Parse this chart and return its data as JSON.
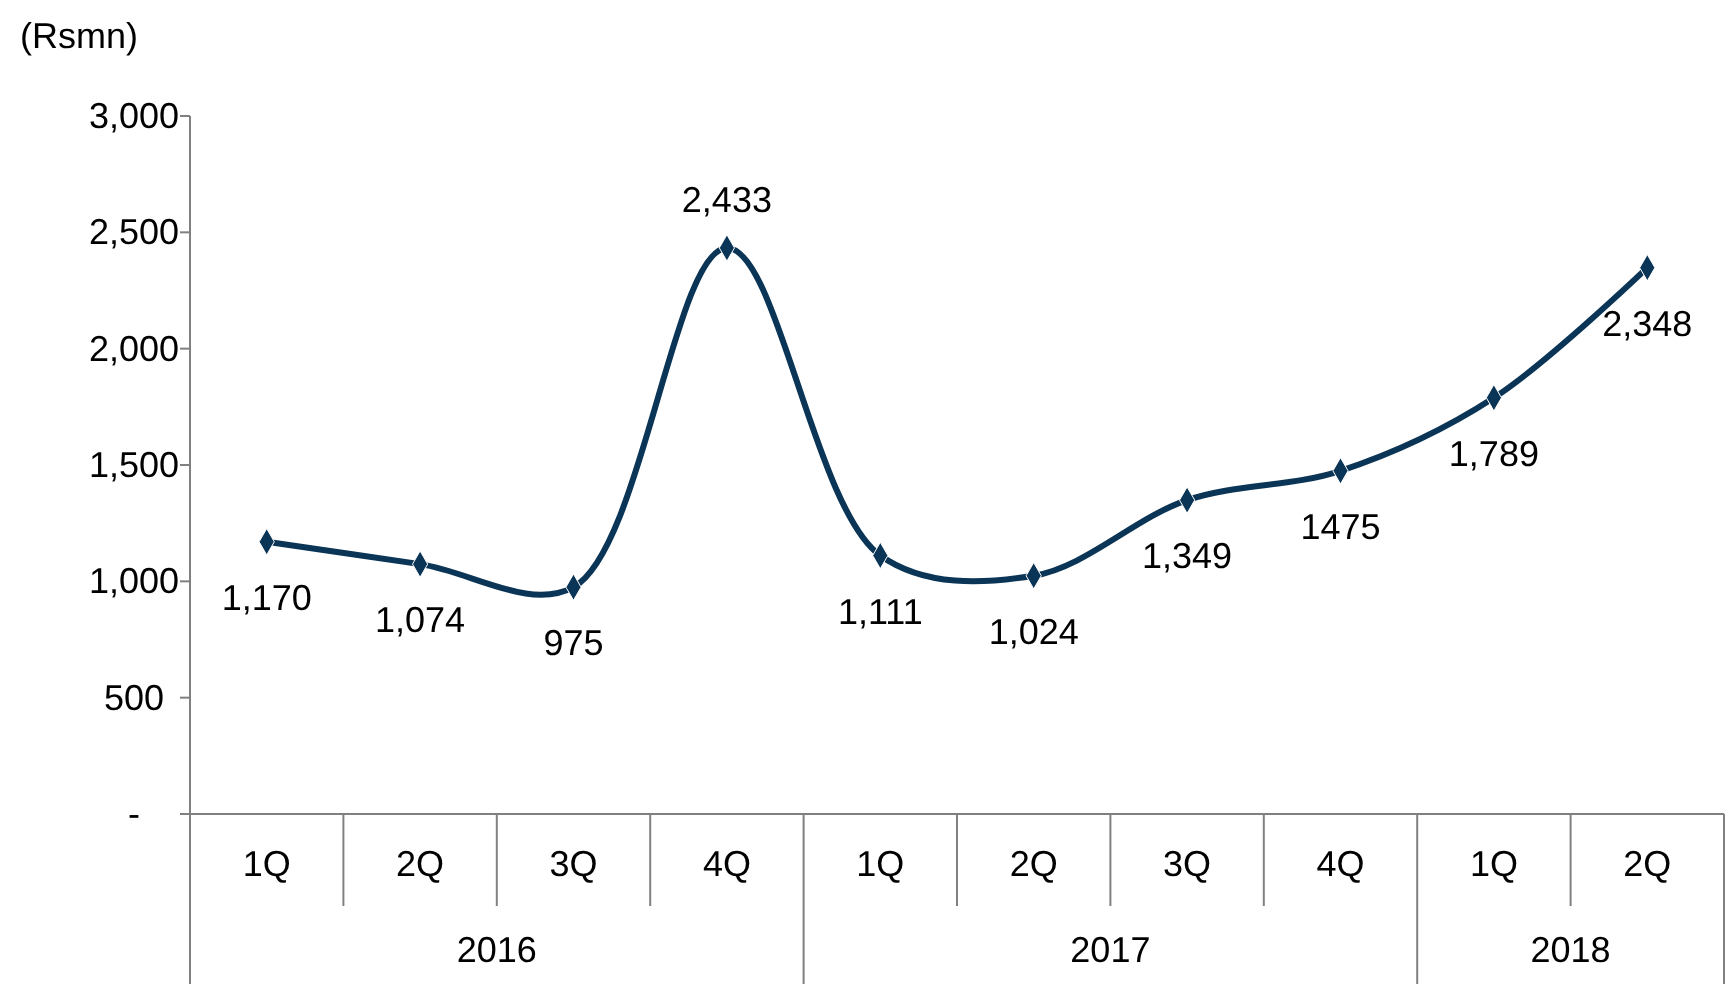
{
  "chart_data": {
    "type": "line",
    "ylabel": "(Rsmn)",
    "categories": [
      "1Q",
      "2Q",
      "3Q",
      "4Q",
      "1Q",
      "2Q",
      "3Q",
      "4Q",
      "1Q",
      "2Q"
    ],
    "series": [
      {
        "color": "#0b3556",
        "values": [
          1170,
          1074,
          975,
          2433,
          1111,
          1024,
          1349,
          1475,
          1789,
          2348
        ]
      }
    ],
    "value_labels": [
      "1,170",
      "1,074",
      "975",
      "2,433",
      "1,111",
      "1,024",
      "1,349",
      "1475",
      "1,789",
      "2,348"
    ],
    "ylim": [
      0,
      3000
    ],
    "yticks": [
      {
        "value": 0,
        "label": "-"
      },
      {
        "value": 500,
        "label": "500"
      },
      {
        "value": 1000,
        "label": "1,000"
      },
      {
        "value": 1500,
        "label": "1,500"
      },
      {
        "value": 2000,
        "label": "2,000"
      },
      {
        "value": 2500,
        "label": "2,500"
      },
      {
        "value": 3000,
        "label": "3,000"
      }
    ],
    "annotations": [
      "2016",
      "2017",
      "2018"
    ],
    "marker": "diamond",
    "grid": false
  }
}
